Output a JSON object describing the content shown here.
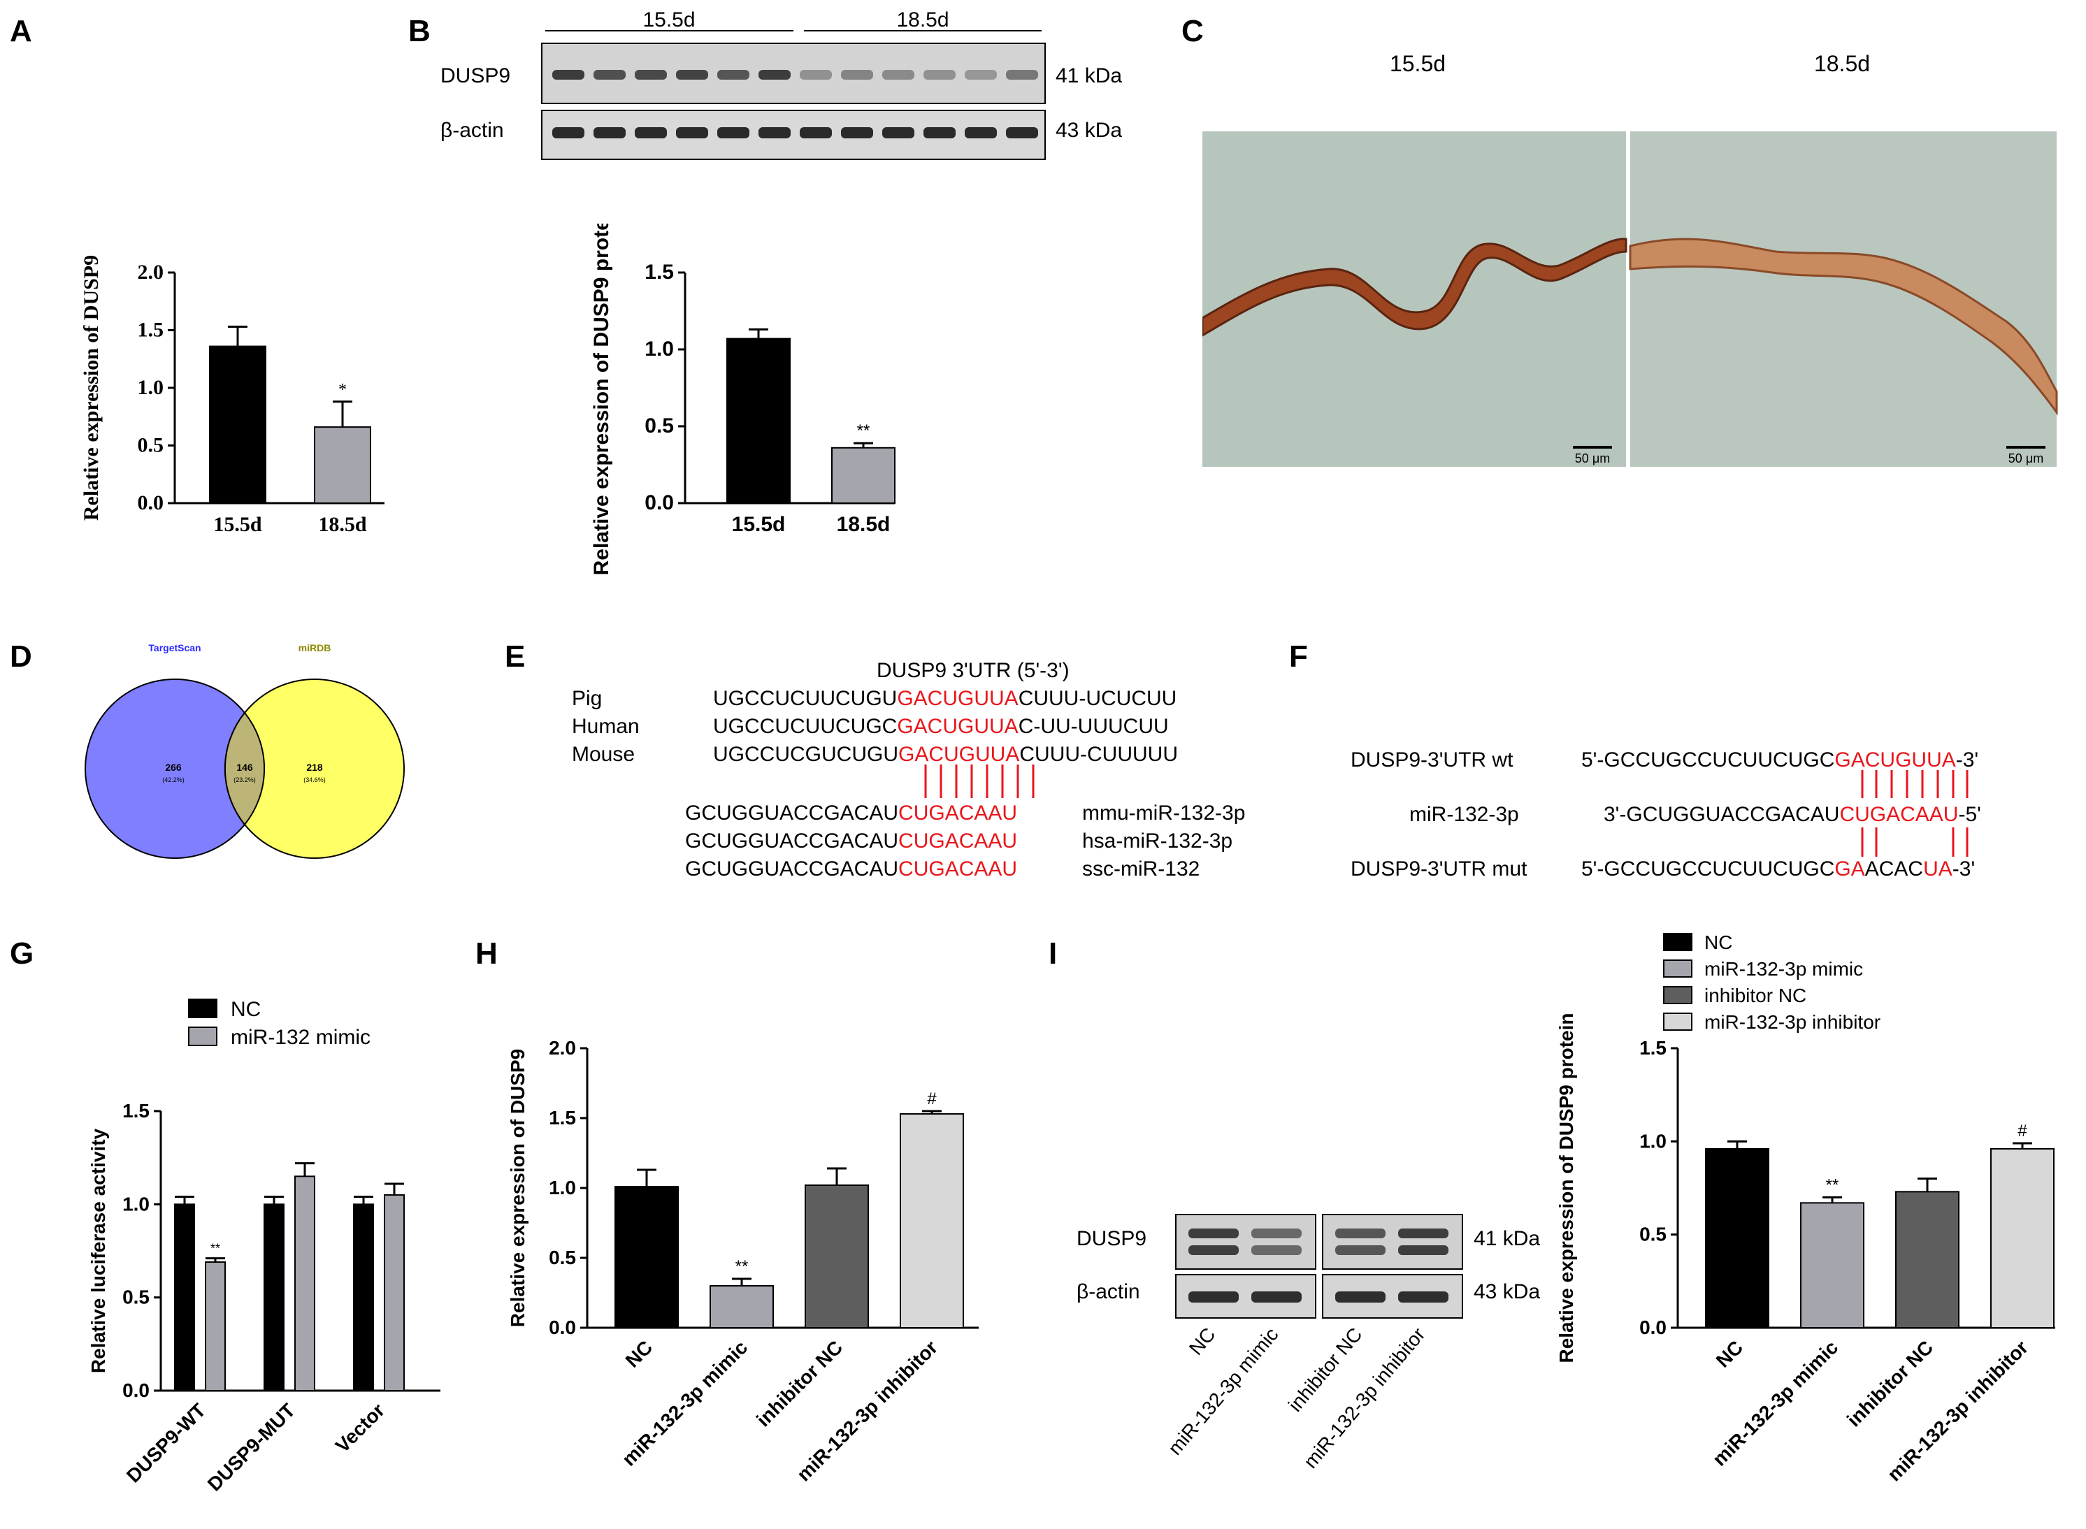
{
  "panel_letters": {
    "A": "A",
    "B": "B",
    "C": "C",
    "D": "D",
    "E": "E",
    "F": "F",
    "G": "G",
    "H": "H",
    "I": "I"
  },
  "chart_data": [
    {
      "id": "A",
      "type": "bar",
      "categories": [
        "15.5d",
        "18.5d"
      ],
      "values": [
        1.36,
        0.66
      ],
      "errors": [
        0.17,
        0.22
      ],
      "sig": [
        "",
        "*"
      ],
      "colors": [
        "#000000",
        "#a5a5ad"
      ],
      "ylabel": "Relative expression of DUSP9",
      "ylim": [
        0,
        2.0
      ],
      "yticks": [
        "0.0",
        "0.5",
        "1.0",
        "1.5",
        "2.0"
      ]
    },
    {
      "id": "B",
      "type": "bar",
      "categories": [
        "15.5d",
        "18.5d"
      ],
      "values": [
        1.07,
        0.36
      ],
      "errors": [
        0.06,
        0.03
      ],
      "sig": [
        "",
        "**"
      ],
      "colors": [
        "#000000",
        "#a5a5ad"
      ],
      "ylabel": "Relative expression of DUSP9 protein",
      "ylim": [
        0,
        1.5
      ],
      "yticks": [
        "0.0",
        "0.5",
        "1.0",
        "1.5"
      ]
    },
    {
      "id": "G",
      "type": "bar",
      "categories": [
        "DUSP9-WT",
        "DUSP9-MUT",
        "Vector"
      ],
      "series": [
        {
          "name": "NC",
          "values": [
            1.0,
            1.0,
            1.0
          ],
          "errors": [
            0.04,
            0.04,
            0.04
          ],
          "color": "#000000"
        },
        {
          "name": "miR-132 mimic",
          "values": [
            0.69,
            1.15,
            1.05
          ],
          "errors": [
            0.02,
            0.07,
            0.06
          ],
          "color": "#a5a5ad"
        }
      ],
      "sig": [
        "**",
        "",
        ""
      ],
      "ylabel": "Relative luciferase activity",
      "ylim": [
        0,
        1.5
      ],
      "yticks": [
        "0.0",
        "0.5",
        "1.0",
        "1.5"
      ]
    },
    {
      "id": "H",
      "type": "bar",
      "categories": [
        "NC",
        "miR-132-3p mimic",
        "inhibitor NC",
        "miR-132-3p inhibitor"
      ],
      "values": [
        1.01,
        0.3,
        1.02,
        1.53
      ],
      "errors": [
        0.12,
        0.05,
        0.12,
        0.02
      ],
      "sig": [
        "",
        "**",
        "",
        "#"
      ],
      "colors": [
        "#000000",
        "#a5a5ad",
        "#5e5e5e",
        "#d8d8d8"
      ],
      "ylabel": "Relative expression of DUSP9",
      "ylim": [
        0,
        2.0
      ],
      "yticks": [
        "0.0",
        "0.5",
        "1.0",
        "1.5",
        "2.0"
      ]
    },
    {
      "id": "I",
      "type": "bar",
      "categories": [
        "NC",
        "miR-132-3p mimic",
        "inhibitor NC",
        "miR-132-3p inhibitor"
      ],
      "values": [
        0.96,
        0.67,
        0.73,
        0.96
      ],
      "errors": [
        0.04,
        0.03,
        0.07,
        0.03
      ],
      "sig": [
        "",
        "**",
        "",
        "#"
      ],
      "colors": [
        "#000000",
        "#a5a5ad",
        "#5e5e5e",
        "#d8d8d8"
      ],
      "legend": [
        "NC",
        "miR-132-3p mimic",
        "inhibitor NC",
        "miR-132-3p inhibitor"
      ],
      "ylabel": "Relative expression of DUSP9 protein",
      "ylim": [
        0,
        1.5
      ],
      "yticks": [
        "0.0",
        "0.5",
        "1.0",
        "1.5"
      ]
    }
  ],
  "blot_b": {
    "group1": "15.5d",
    "group2": "18.5d",
    "row1": "DUSP9",
    "row2": "β-actin",
    "kda1": "41 kDa",
    "kda2": "43 kDa"
  },
  "histology_c": {
    "left": "15.5d",
    "right": "18.5d",
    "scale_left": "50 μm",
    "scale_right": "50 μm"
  },
  "venn_d": {
    "left_name": "TargetScan",
    "right_name": "miRDB",
    "left_count": "266",
    "left_pct": "(42.2%)",
    "mid_count": "146",
    "mid_pct": "(23.2%)",
    "right_count": "218",
    "right_pct": "(34.6%)",
    "left_color": "#7f7fff",
    "right_color": "#ffff66",
    "overlap_color": "#bcb577"
  },
  "panel_e": {
    "title": "DUSP9 3'UTR (5'-3')",
    "species": [
      "Pig",
      "Human",
      "Mouse"
    ],
    "utr_rows": [
      {
        "pre": "UGCCUCUUCUGU",
        "site": "GACUGUUA",
        "post": "CUUU-UCUCUU"
      },
      {
        "pre": "UGCCUCUUCUGC",
        "site": "GACUGUUA",
        "post": "C-UU-UUUCUU"
      },
      {
        "pre": "UGCCUCGUCUGU",
        "site": "GACUGUUA",
        "post": "CUUU-CUUUUU"
      }
    ],
    "mirna_rows": [
      {
        "pre": "GCUGGUACCGACAU",
        "site": "CUGACAAU",
        "name": "mmu-miR-132-3p"
      },
      {
        "pre": "GCUGGUACCGACAU",
        "site": "CUGACAAU",
        "name": "hsa-miR-132-3p"
      },
      {
        "pre": "GCUGGUACCGACAU",
        "site": "CUGACAAU",
        "name": "ssc-miR-132"
      }
    ]
  },
  "panel_f": {
    "wt_label": "DUSP9-3'UTR wt",
    "wt_pre": "5'-GCCUGCCUCUUCUGC",
    "wt_site": "GACUGUUA",
    "wt_post": "-3'",
    "mir_label": "miR-132-3p",
    "mir_pre": "3'-GCUGGUACCGACAU",
    "mir_site": "CUGACAAU",
    "mir_post": "-5'",
    "mut_label": "DUSP9-3'UTR mut",
    "mut_pre": "5'-GCCUGCCUCUUCUGC",
    "mut_s1": "GA",
    "mut_mid": "ACAC",
    "mut_s2": "UA",
    "mut_post": "-3'"
  },
  "blot_i": {
    "row1": "DUSP9",
    "row2": "β-actin",
    "kda1": "41 kDa",
    "kda2": "43 kDa",
    "lanes": [
      "NC",
      "miR-132-3p mimic",
      "inhibitor NC",
      "miR-132-3p inhibitor"
    ]
  }
}
